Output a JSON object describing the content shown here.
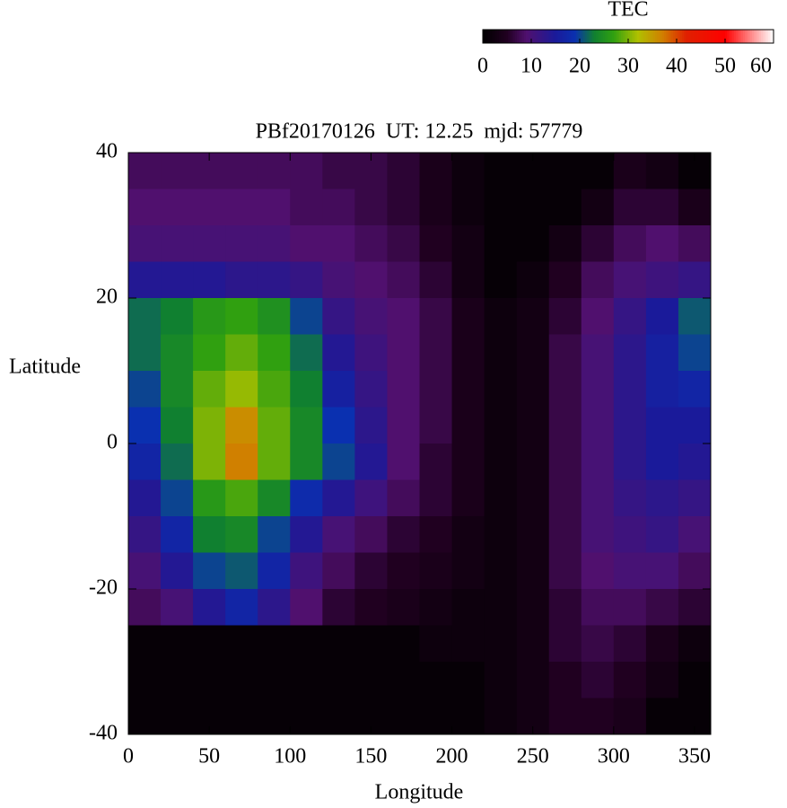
{
  "chart_data": {
    "type": "heatmap",
    "title": "PBf20170126  UT: 12.25  mjd: 57779",
    "xlabel": "Longitude",
    "ylabel": "Latitude",
    "xlim": [
      0,
      360
    ],
    "ylim": [
      -40,
      40
    ],
    "xticks": [
      0,
      50,
      100,
      150,
      200,
      250,
      300,
      350
    ],
    "yticks": [
      -40,
      -20,
      0,
      20,
      40
    ],
    "x": [
      10,
      30,
      50,
      70,
      90,
      110,
      130,
      150,
      170,
      190,
      210,
      230,
      250,
      270,
      290,
      310,
      330,
      350
    ],
    "y": [
      37.5,
      32.5,
      27.5,
      22.5,
      17.5,
      12.5,
      7.5,
      2.5,
      -2.5,
      -7.5,
      -12.5,
      -17.5,
      -22.5,
      -27.5,
      -32.5,
      -37.5
    ],
    "values": [
      [
        8,
        8,
        8,
        8,
        8,
        8,
        7,
        7,
        6,
        4,
        2,
        1,
        1,
        1,
        1,
        4,
        3,
        1
      ],
      [
        9,
        9,
        9,
        9,
        9,
        8,
        8,
        7,
        6,
        4,
        2,
        1,
        1,
        1,
        3,
        6,
        6,
        4
      ],
      [
        10,
        10,
        10,
        10,
        10,
        9,
        9,
        8,
        7,
        5,
        3,
        1,
        1,
        3,
        6,
        8,
        9,
        8
      ],
      [
        14,
        14,
        14,
        13,
        13,
        12,
        10,
        9,
        8,
        6,
        3,
        1,
        2,
        5,
        8,
        10,
        11,
        12
      ],
      [
        22,
        23,
        26,
        27,
        25,
        20,
        12,
        10,
        9,
        7,
        4,
        2,
        3,
        6,
        9,
        12,
        15,
        21
      ],
      [
        22,
        24,
        27,
        29,
        27,
        22,
        14,
        11,
        9,
        7,
        4,
        2,
        3,
        7,
        10,
        13,
        16,
        20
      ],
      [
        20,
        24,
        29,
        31,
        28,
        23,
        16,
        12,
        9,
        7,
        4,
        2,
        3,
        7,
        10,
        13,
        16,
        17
      ],
      [
        19,
        23,
        30,
        36,
        29,
        24,
        19,
        13,
        9,
        7,
        4,
        2,
        3,
        7,
        10,
        13,
        15,
        15
      ],
      [
        17,
        22,
        30,
        37,
        29,
        24,
        20,
        14,
        9,
        6,
        4,
        2,
        3,
        7,
        10,
        13,
        15,
        14
      ],
      [
        14,
        20,
        26,
        28,
        24,
        18,
        14,
        11,
        8,
        6,
        4,
        2,
        3,
        7,
        10,
        12,
        13,
        12
      ],
      [
        12,
        17,
        23,
        24,
        20,
        14,
        10,
        8,
        6,
        5,
        3,
        2,
        3,
        7,
        10,
        11,
        12,
        10
      ],
      [
        10,
        14,
        20,
        21,
        17,
        11,
        8,
        6,
        5,
        4,
        3,
        2,
        3,
        7,
        9,
        10,
        10,
        8
      ],
      [
        8,
        10,
        14,
        17,
        13,
        9,
        6,
        5,
        4,
        3,
        2,
        2,
        3,
        6,
        8,
        8,
        7,
        6
      ],
      [
        1,
        1,
        1,
        1,
        1,
        1,
        1,
        1,
        1,
        2,
        2,
        2,
        3,
        6,
        7,
        6,
        4,
        2
      ],
      [
        1,
        1,
        1,
        1,
        1,
        1,
        1,
        1,
        1,
        1,
        1,
        2,
        3,
        5,
        6,
        5,
        3,
        1
      ],
      [
        1,
        1,
        1,
        1,
        1,
        1,
        1,
        1,
        1,
        1,
        1,
        2,
        3,
        5,
        5,
        4,
        1,
        1
      ]
    ],
    "colorbar": {
      "title": "TEC",
      "lim": [
        0,
        60
      ],
      "ticks": [
        0,
        10,
        20,
        30,
        40,
        50,
        60
      ],
      "colormap": [
        {
          "value": 0,
          "color": "#000000"
        },
        {
          "value": 5,
          "color": "#200020"
        },
        {
          "value": 9,
          "color": "#50106e"
        },
        {
          "value": 15,
          "color": "#1a1a9a"
        },
        {
          "value": 19,
          "color": "#0a30b0"
        },
        {
          "value": 23,
          "color": "#108030"
        },
        {
          "value": 27,
          "color": "#30a010"
        },
        {
          "value": 32,
          "color": "#b0c000"
        },
        {
          "value": 37,
          "color": "#d08000"
        },
        {
          "value": 42,
          "color": "#e02000"
        },
        {
          "value": 50,
          "color": "#ff0000"
        },
        {
          "value": 60,
          "color": "#ffffff"
        }
      ]
    }
  }
}
